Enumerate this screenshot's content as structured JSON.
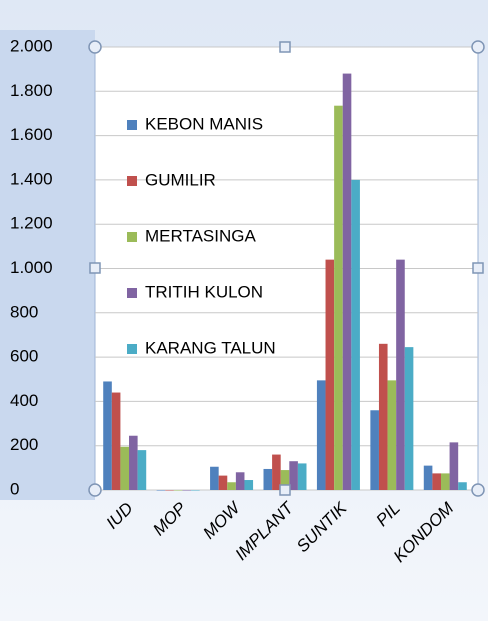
{
  "chart_data": {
    "type": "bar",
    "categories": [
      "IUD",
      "MOP",
      "MOW",
      "IMPLANT",
      "SUNTIK",
      "PIL",
      "KONDOM"
    ],
    "series": [
      {
        "name": "KEBON MANIS",
        "color": "#4f81bd",
        "values": [
          490,
          0,
          105,
          95,
          495,
          360,
          110
        ]
      },
      {
        "name": "GUMILIR",
        "color": "#c0504d",
        "values": [
          440,
          0,
          65,
          160,
          1040,
          660,
          75
        ]
      },
      {
        "name": "MERTASINGA",
        "color": "#9bbb59",
        "values": [
          195,
          0,
          35,
          90,
          1735,
          495,
          75
        ]
      },
      {
        "name": "TRITIH KULON",
        "color": "#8064a2",
        "values": [
          245,
          0,
          80,
          130,
          1880,
          1040,
          215
        ]
      },
      {
        "name": "KARANG TALUN",
        "color": "#4bacc6",
        "values": [
          180,
          0,
          45,
          120,
          1400,
          645,
          35
        ]
      }
    ],
    "ylim": [
      0,
      2000
    ],
    "yticks": [
      0,
      200,
      400,
      600,
      800,
      {
        "value": 1000,
        "label": "1.000"
      },
      {
        "value": 1200,
        "label": "1.200"
      },
      {
        "value": 1400,
        "label": "1.400"
      },
      {
        "value": 1600,
        "label": "1.600"
      },
      {
        "value": 1800,
        "label": "1.800"
      },
      {
        "value": 2000,
        "label": "2.000"
      }
    ],
    "grid": true
  }
}
